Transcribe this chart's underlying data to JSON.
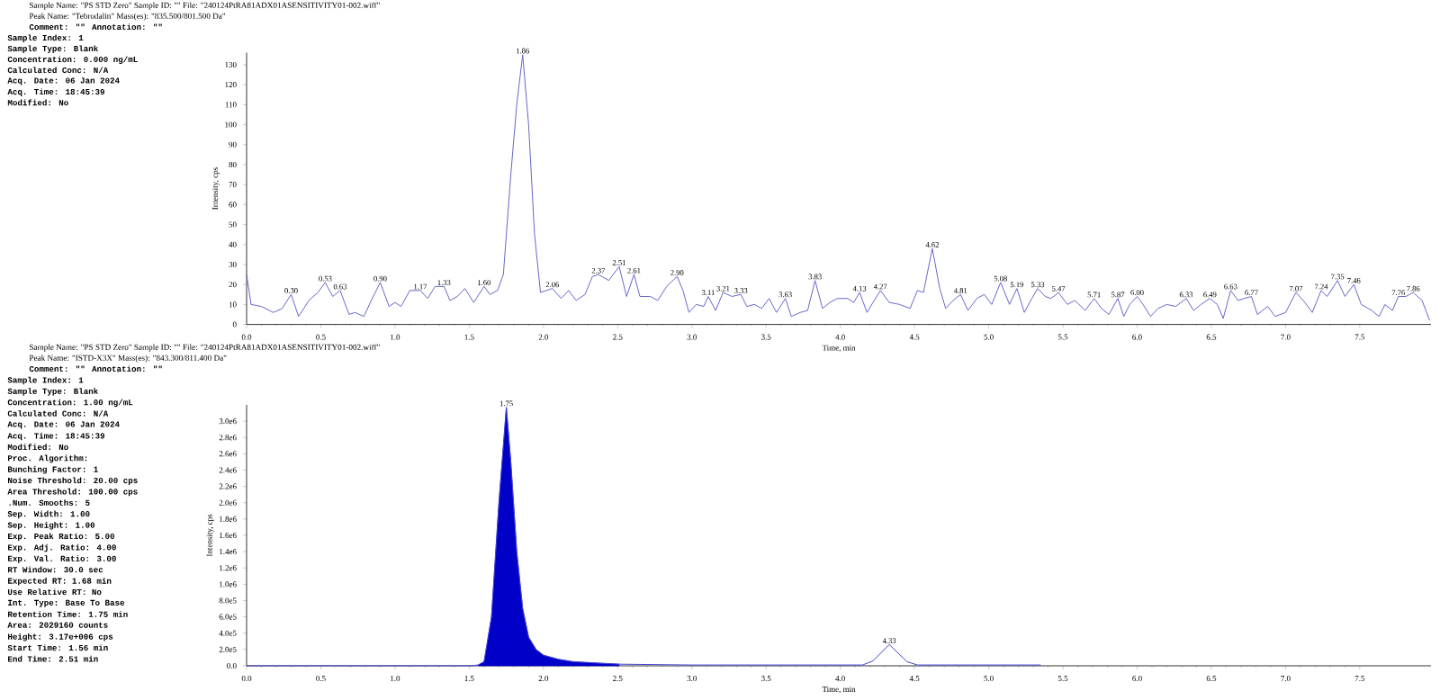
{
  "chart_data": [
    {
      "type": "line",
      "title": "Sample Name: \"PS STD Zero\"  Sample ID: \"\"  File: \"240124PtRA81ADX01ASENSITIVITY01-002.wiff\"",
      "subtitle": "Peak Name: \"Tebrodalin\"  Mass(es): \"835.500/801.500 Da\"",
      "xlabel": "Time, min",
      "ylabel": "Intensity, cps",
      "xlim": [
        0,
        7.98
      ],
      "ylim": [
        0,
        136
      ],
      "xticks": [
        {
          "value": 0,
          "label": "0.0"
        },
        {
          "value": 0.5,
          "label": "0.5"
        },
        {
          "value": 1,
          "label": "1.0"
        },
        {
          "value": 1.5,
          "label": "1.5"
        },
        {
          "value": 2,
          "label": "2.0"
        },
        {
          "value": 2.5,
          "label": "2.5"
        },
        {
          "value": 3,
          "label": "3.0"
        },
        {
          "value": 3.5,
          "label": "3.5"
        },
        {
          "value": 4,
          "label": "4.0"
        },
        {
          "value": 4.5,
          "label": "4.5"
        },
        {
          "value": 5,
          "label": "5.0"
        },
        {
          "value": 5.5,
          "label": "5.5"
        },
        {
          "value": 6,
          "label": "6.0"
        },
        {
          "value": 6.5,
          "label": "6.5"
        },
        {
          "value": 7,
          "label": "7.0"
        },
        {
          "value": 7.5,
          "label": "7.5"
        }
      ],
      "yticks": [
        0,
        10,
        20,
        30,
        40,
        50,
        60,
        70,
        80,
        90,
        100,
        110,
        120,
        130
      ],
      "series": [
        {
          "color": "#6666cc",
          "x": [
            0,
            0.03,
            0.1,
            0.18,
            0.24,
            0.3,
            0.35,
            0.42,
            0.48,
            0.53,
            0.58,
            0.63,
            0.69,
            0.73,
            0.79,
            0.84,
            0.9,
            0.96,
            1.0,
            1.04,
            1.1,
            1.17,
            1.22,
            1.27,
            1.33,
            1.37,
            1.42,
            1.47,
            1.53,
            1.6,
            1.64,
            1.69,
            1.73,
            1.78,
            1.82,
            1.86,
            1.9,
            1.94,
            1.98,
            2.02,
            2.06,
            2.12,
            2.17,
            2.22,
            2.28,
            2.33,
            2.37,
            2.44,
            2.51,
            2.56,
            2.61,
            2.65,
            2.72,
            2.77,
            2.83,
            2.9,
            2.94,
            2.98,
            3.03,
            3.08,
            3.11,
            3.16,
            3.21,
            3.27,
            3.33,
            3.37,
            3.42,
            3.47,
            3.52,
            3.57,
            3.63,
            3.67,
            3.73,
            3.78,
            3.83,
            3.88,
            3.93,
            3.98,
            4.05,
            4.09,
            4.13,
            4.18,
            4.22,
            4.27,
            4.33,
            4.4,
            4.47,
            4.52,
            4.56,
            4.62,
            4.67,
            4.71,
            4.76,
            4.81,
            4.86,
            4.92,
            4.97,
            5.02,
            5.08,
            5.14,
            5.19,
            5.24,
            5.29,
            5.33,
            5.38,
            5.42,
            5.47,
            5.53,
            5.58,
            5.65,
            5.71,
            5.76,
            5.81,
            5.87,
            5.91,
            5.95,
            6.0,
            6.04,
            6.09,
            6.14,
            6.2,
            6.26,
            6.33,
            6.38,
            6.43,
            6.49,
            6.54,
            6.58,
            6.63,
            6.68,
            6.72,
            6.77,
            6.81,
            6.88,
            6.93,
            7.0,
            7.07,
            7.13,
            7.18,
            7.24,
            7.28,
            7.35,
            7.4,
            7.46,
            7.51,
            7.58,
            7.63,
            7.67,
            7.72,
            7.76,
            7.81,
            7.86,
            7.92,
            7.97
          ],
          "values": [
            25,
            10,
            9,
            6,
            8,
            15,
            4,
            12,
            16,
            21,
            14,
            17,
            5,
            6,
            4,
            12,
            21,
            9,
            11,
            9,
            17,
            17,
            13,
            19,
            19,
            12,
            14,
            18,
            11,
            19,
            15,
            17,
            25,
            75,
            110,
            135,
            100,
            45,
            16,
            17,
            18,
            13,
            17,
            12,
            15,
            24,
            25,
            22,
            29,
            14,
            25,
            14,
            14,
            12,
            19,
            24,
            17,
            6,
            10,
            9,
            14,
            7,
            16,
            14,
            15,
            9,
            10,
            8,
            13,
            6,
            13,
            4,
            6,
            7,
            22,
            8,
            11,
            13,
            13,
            11,
            16,
            6,
            11,
            17,
            11,
            10,
            8,
            17,
            16,
            38,
            18,
            8,
            12,
            15,
            7,
            13,
            15,
            10,
            21,
            10,
            18,
            6,
            13,
            18,
            14,
            13,
            16,
            10,
            12,
            7,
            13,
            8,
            5,
            13,
            4,
            10,
            14,
            10,
            4,
            8,
            10,
            9,
            13,
            7,
            10,
            13,
            10,
            3,
            17,
            12,
            13,
            14,
            5,
            9,
            4,
            6,
            16,
            11,
            6,
            17,
            14,
            22,
            14,
            20,
            10,
            7,
            4,
            10,
            7,
            14,
            14,
            16,
            12,
            2
          ]
        }
      ],
      "annotations": [
        "Comment: \"\"  Annotation: \"\"",
        "Sample Index: 1",
        "Sample Type: Blank",
        "Concentration: 0.000 ng/mL",
        "Calculated Conc: N/A",
        "Acq. Date: 06 Jan 2024",
        "Acq. Time: 18:45:39",
        "Modified: No",
        {
          "text": "0.30",
          "x": 0.3,
          "y": 15
        },
        {
          "text": "0.53",
          "x": 0.53,
          "y": 21
        },
        {
          "text": "0.63",
          "x": 0.63,
          "y": 17
        },
        {
          "text": "0.90",
          "x": 0.9,
          "y": 21
        },
        {
          "text": "1.17",
          "x": 1.17,
          "y": 17
        },
        {
          "text": "1.33",
          "x": 1.33,
          "y": 19
        },
        {
          "text": "1.60",
          "x": 1.6,
          "y": 19
        },
        {
          "text": "1.86",
          "x": 1.86,
          "y": 135
        },
        {
          "text": "2.06",
          "x": 2.06,
          "y": 18
        },
        {
          "text": "2.37",
          "x": 2.37,
          "y": 25
        },
        {
          "text": "2.51",
          "x": 2.51,
          "y": 29
        },
        {
          "text": "2.61",
          "x": 2.61,
          "y": 25
        },
        {
          "text": "2.90",
          "x": 2.9,
          "y": 24
        },
        {
          "text": "3.11",
          "x": 3.11,
          "y": 14
        },
        {
          "text": "3.21",
          "x": 3.21,
          "y": 16
        },
        {
          "text": "3.33",
          "x": 3.33,
          "y": 15
        },
        {
          "text": "3.63",
          "x": 3.63,
          "y": 13
        },
        {
          "text": "3.83",
          "x": 3.83,
          "y": 22
        },
        {
          "text": "4.13",
          "x": 4.13,
          "y": 16
        },
        {
          "text": "4.27",
          "x": 4.27,
          "y": 17
        },
        {
          "text": "4.62",
          "x": 4.62,
          "y": 38
        },
        {
          "text": "4.81",
          "x": 4.81,
          "y": 15
        },
        {
          "text": "5.08",
          "x": 5.08,
          "y": 21
        },
        {
          "text": "5.19",
          "x": 5.19,
          "y": 18
        },
        {
          "text": "5.33",
          "x": 5.33,
          "y": 18
        },
        {
          "text": "5.47",
          "x": 5.47,
          "y": 16
        },
        {
          "text": "5.71",
          "x": 5.71,
          "y": 13
        },
        {
          "text": "5.87",
          "x": 5.87,
          "y": 13
        },
        {
          "text": "6.00",
          "x": 6.0,
          "y": 14
        },
        {
          "text": "6.33",
          "x": 6.33,
          "y": 13
        },
        {
          "text": "6.49",
          "x": 6.49,
          "y": 13
        },
        {
          "text": "6.63",
          "x": 6.63,
          "y": 17
        },
        {
          "text": "6.77",
          "x": 6.77,
          "y": 14
        },
        {
          "text": "7.07",
          "x": 7.07,
          "y": 16
        },
        {
          "text": "7.24",
          "x": 7.24,
          "y": 17
        },
        {
          "text": "7.35",
          "x": 7.35,
          "y": 22
        },
        {
          "text": "7.46",
          "x": 7.46,
          "y": 20
        },
        {
          "text": "7.76",
          "x": 7.76,
          "y": 14
        },
        {
          "text": "7.86",
          "x": 7.86,
          "y": 16
        }
      ]
    },
    {
      "type": "line",
      "title": "Sample Name: \"PS STD Zero\"  Sample ID: \"\"  File: \"240124PtRA81ADX01ASENSITIVITY01-002.wiff\"",
      "subtitle": "Peak Name: \"ISTD-X3X\"  Mass(es): \"843.300/811.400 Da\"",
      "xlabel": "Time, min",
      "ylabel": "Intensity, cps",
      "xlim": [
        0,
        7.98
      ],
      "ylim": [
        0,
        3200000
      ],
      "xticks": [
        {
          "value": 0,
          "label": "0.0"
        },
        {
          "value": 0.5,
          "label": "0.5"
        },
        {
          "value": 1,
          "label": "1.0"
        },
        {
          "value": 1.5,
          "label": "1.5"
        },
        {
          "value": 2,
          "label": "2.0"
        },
        {
          "value": 2.5,
          "label": "2.5"
        },
        {
          "value": 3,
          "label": "3.0"
        },
        {
          "value": 3.5,
          "label": "3.5"
        },
        {
          "value": 4,
          "label": "4.0"
        },
        {
          "value": 4.5,
          "label": "4.5"
        },
        {
          "value": 5,
          "label": "5.0"
        },
        {
          "value": 5.5,
          "label": "5.5"
        },
        {
          "value": 6,
          "label": "6.0"
        },
        {
          "value": 6.5,
          "label": "6.5"
        },
        {
          "value": 7,
          "label": "7.0"
        },
        {
          "value": 7.5,
          "label": "7.5"
        }
      ],
      "yticks": [
        {
          "value": 0,
          "label": "0.0"
        },
        {
          "value": 200000,
          "label": "2.0e5"
        },
        {
          "value": 400000,
          "label": "4.0e5"
        },
        {
          "value": 600000,
          "label": "6.0e5"
        },
        {
          "value": 800000,
          "label": "8.0e5"
        },
        {
          "value": 1000000,
          "label": "1.0e6"
        },
        {
          "value": 1200000,
          "label": "1.2e6"
        },
        {
          "value": 1400000,
          "label": "1.4e6"
        },
        {
          "value": 1600000,
          "label": "1.6e6"
        },
        {
          "value": 1800000,
          "label": "1.8e6"
        },
        {
          "value": 2000000,
          "label": "2.0e6"
        },
        {
          "value": 2200000,
          "label": "2.2e6"
        },
        {
          "value": 2400000,
          "label": "2.4e6"
        },
        {
          "value": 2600000,
          "label": "2.6e6"
        },
        {
          "value": 2800000,
          "label": "2.8e6"
        },
        {
          "value": 3000000,
          "label": "3.0e6"
        }
      ],
      "series": [
        {
          "type": "area",
          "color": "#0000c8",
          "x": [
            1.56,
            1.6,
            1.65,
            1.7,
            1.75,
            1.78,
            1.82,
            1.86,
            1.9,
            1.95,
            2.0,
            2.1,
            2.2,
            2.3,
            2.4,
            2.51
          ],
          "values": [
            10000,
            50000,
            600000,
            2000000,
            3170000,
            2500000,
            1400000,
            700000,
            350000,
            200000,
            130000,
            80000,
            50000,
            40000,
            30000,
            20000
          ]
        },
        {
          "color": "#4040d0",
          "x": [
            0,
            1.5,
            1.56,
            1.6,
            1.65,
            1.7,
            1.75,
            1.78,
            1.82,
            1.86,
            1.9,
            1.95,
            2.0,
            2.1,
            2.2,
            2.3,
            2.4,
            2.51,
            3.0,
            4.15,
            4.22,
            4.33,
            4.45,
            4.52,
            5.35
          ],
          "values": [
            0,
            0,
            10000,
            50000,
            600000,
            2000000,
            3170000,
            2500000,
            1400000,
            700000,
            350000,
            200000,
            130000,
            80000,
            50000,
            40000,
            30000,
            20000,
            10000,
            10000,
            60000,
            260000,
            50000,
            10000,
            10000
          ]
        }
      ],
      "annotations": [
        "Comment: \"\"  Annotation: \"\"",
        "Sample Index: 1",
        "Sample Type: Blank",
        "Concentration: 1.00 ng/mL",
        "Calculated Conc: N/A",
        "Acq. Date: 06 Jan 2024",
        "Acq. Time: 18:45:39",
        "Modified: No",
        "Proc. Algorithm:",
        "Bunching Factor: 1",
        "Noise Threshold: 20.00 cps",
        "Area Threshold: 100.00 cps",
        ".Num. Smooths: 5",
        "Sep. Width: 1.00",
        "Sep. Height: 1.00",
        "Exp. Peak Ratio: 5.00",
        "Exp. Adj. Ratio: 4.00",
        "Exp. Val. Ratio: 3.00",
        "RT Window: 30.0 sec",
        "Expected RT: 1.68 min",
        "Use Relative RT: No",
        "Int. Type: Base To Base",
        "Retention Time: 1.75 min",
        "Area: 2029160 counts",
        "Height: 3.17e+006 cps",
        "Start Time: 1.56 min",
        "End Time: 2.51 min",
        {
          "text": "1.75",
          "x": 1.75,
          "y": 3170000
        },
        {
          "text": "4.33",
          "x": 4.33,
          "y": 260000
        }
      ]
    }
  ]
}
